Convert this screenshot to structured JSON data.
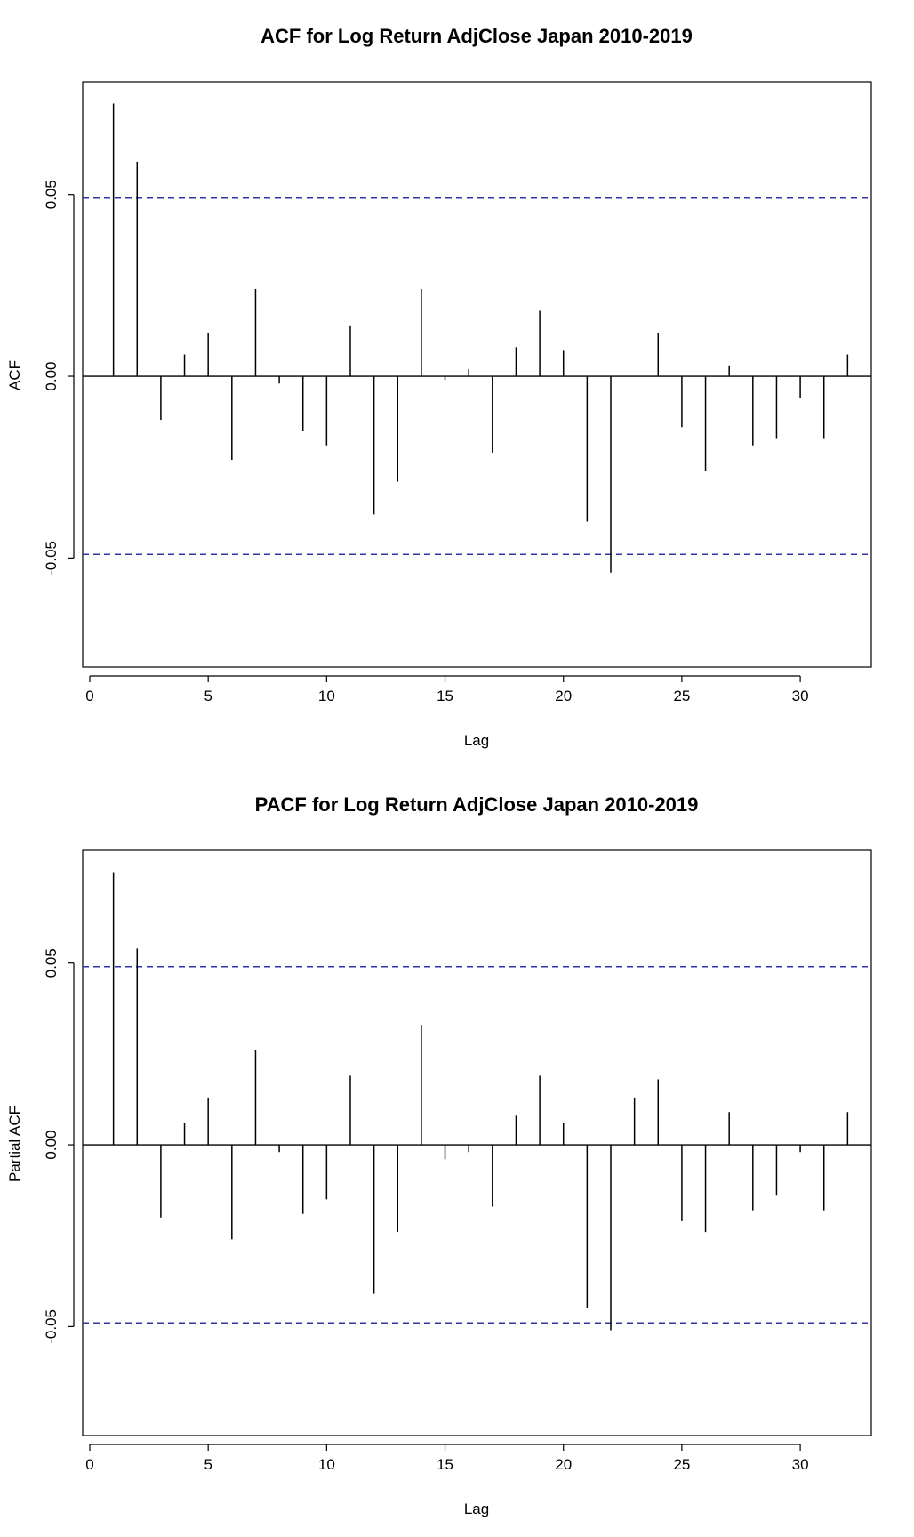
{
  "chart_data": [
    {
      "type": "bar",
      "title": "ACF for Log Return AdjClose Japan 2010-2019",
      "xlabel": "Lag",
      "ylabel": "ACF",
      "xlim": [
        -0.3,
        33
      ],
      "ylim": [
        -0.08,
        0.081
      ],
      "x_ticks": [
        0,
        5,
        10,
        15,
        20,
        25,
        30
      ],
      "y_ticks": [
        -0.05,
        0.0,
        0.05
      ],
      "y_tick_labels": [
        "-0.05",
        "0.00",
        "0.05"
      ],
      "confidence_bound": 0.049,
      "confidence_color": "#3333aa",
      "grid": false,
      "lags": [
        1,
        2,
        3,
        4,
        5,
        6,
        7,
        8,
        9,
        10,
        11,
        12,
        13,
        14,
        15,
        16,
        17,
        18,
        19,
        20,
        21,
        22,
        23,
        24,
        25,
        26,
        27,
        28,
        29,
        30,
        31,
        32
      ],
      "values": [
        0.075,
        0.059,
        -0.012,
        0.006,
        0.012,
        -0.023,
        0.024,
        -0.002,
        -0.015,
        -0.019,
        0.014,
        -0.038,
        -0.029,
        0.024,
        -0.001,
        0.002,
        -0.021,
        0.008,
        0.018,
        0.007,
        -0.04,
        -0.054,
        0.0,
        0.012,
        -0.014,
        -0.026,
        0.003,
        -0.019,
        -0.017,
        -0.006,
        -0.017,
        0.006
      ]
    },
    {
      "type": "bar",
      "title": "PACF for Log Return AdjClose Japan 2010-2019",
      "xlabel": "Lag",
      "ylabel": "Partial ACF",
      "xlim": [
        -0.3,
        33
      ],
      "ylim": [
        -0.08,
        0.081
      ],
      "x_ticks": [
        0,
        5,
        10,
        15,
        20,
        25,
        30
      ],
      "y_ticks": [
        -0.05,
        0.0,
        0.05
      ],
      "y_tick_labels": [
        "-0.05",
        "0.00",
        "0.05"
      ],
      "confidence_bound": 0.049,
      "confidence_color": "#3333aa",
      "grid": false,
      "lags": [
        1,
        2,
        3,
        4,
        5,
        6,
        7,
        8,
        9,
        10,
        11,
        12,
        13,
        14,
        15,
        16,
        17,
        18,
        19,
        20,
        21,
        22,
        23,
        24,
        25,
        26,
        27,
        28,
        29,
        30,
        31,
        32
      ],
      "values": [
        0.075,
        0.054,
        -0.02,
        0.006,
        0.013,
        -0.026,
        0.026,
        -0.002,
        -0.019,
        -0.015,
        0.019,
        -0.041,
        -0.024,
        0.033,
        -0.004,
        -0.002,
        -0.017,
        0.008,
        0.019,
        0.006,
        -0.045,
        -0.051,
        0.013,
        0.018,
        -0.021,
        -0.024,
        0.009,
        -0.018,
        -0.014,
        -0.002,
        -0.018,
        0.009
      ]
    }
  ]
}
